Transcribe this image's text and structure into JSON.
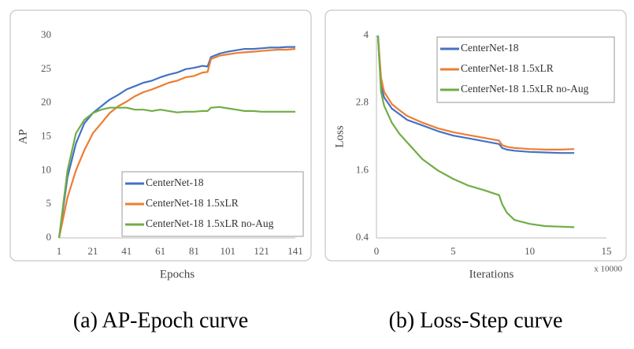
{
  "chart_data": [
    {
      "type": "line",
      "caption": "(a) AP-Epoch curve",
      "xlabel": "Epochs",
      "ylabel": "AP",
      "x": [
        1,
        6,
        11,
        16,
        21,
        26,
        31,
        36,
        41,
        46,
        51,
        56,
        61,
        66,
        71,
        76,
        81,
        86,
        89,
        91,
        96,
        101,
        106,
        111,
        116,
        121,
        126,
        131,
        136,
        141
      ],
      "xlim": [
        1,
        141
      ],
      "xticks": [
        1,
        21,
        41,
        61,
        81,
        101,
        121,
        141
      ],
      "ylim": [
        0,
        30
      ],
      "yticks": [
        0,
        5,
        10,
        15,
        20,
        25,
        30
      ],
      "grid": false,
      "legend": "lower right",
      "series": [
        {
          "name": "CenterNet-18",
          "color": "#4472c4",
          "values": [
            0,
            9,
            14,
            17,
            18.5,
            19.5,
            20.5,
            21.2,
            22,
            22.5,
            23,
            23.3,
            23.8,
            24.2,
            24.5,
            25,
            25.2,
            25.5,
            25.4,
            26.8,
            27.3,
            27.6,
            27.8,
            28,
            28,
            28.1,
            28.2,
            28.2,
            28.3,
            28.3
          ]
        },
        {
          "name": "CenterNet-18 1.5xLR",
          "color": "#ed7d31",
          "values": [
            0,
            6,
            10,
            13,
            15.5,
            17,
            18.5,
            19.5,
            20.2,
            21,
            21.6,
            22,
            22.5,
            23,
            23.3,
            23.8,
            24,
            24.5,
            24.6,
            26.5,
            27,
            27.2,
            27.4,
            27.5,
            27.6,
            27.7,
            27.8,
            27.9,
            27.9,
            28
          ]
        },
        {
          "name": "CenterNet-18 1.5xLR no-Aug",
          "color": "#70ad47",
          "values": [
            0,
            10,
            15.5,
            17.5,
            18.5,
            19,
            19.3,
            19.3,
            19.3,
            19,
            19,
            18.8,
            19,
            18.8,
            18.6,
            18.7,
            18.7,
            18.8,
            18.8,
            19.3,
            19.4,
            19.2,
            19,
            18.8,
            18.8,
            18.7,
            18.7,
            18.7,
            18.7,
            18.7
          ]
        }
      ]
    },
    {
      "type": "line",
      "caption": "(b) Loss-Step curve",
      "xlabel": "Iterations",
      "ylabel": "Loss",
      "xunit": "x 10000",
      "x": [
        0.1,
        0.3,
        0.5,
        1,
        1.5,
        2,
        3,
        4,
        5,
        6,
        7,
        8,
        8.2,
        8.5,
        9,
        10,
        11,
        12,
        12.9
      ],
      "xlim": [
        0,
        15
      ],
      "xticks": [
        0,
        5,
        10,
        15
      ],
      "ylim": [
        0.4,
        4
      ],
      "yticks": [
        0.4,
        1.6,
        2.8,
        4
      ],
      "grid": false,
      "legend": "upper right",
      "series": [
        {
          "name": "CenterNet-18",
          "color": "#4472c4",
          "values": [
            4,
            3.1,
            2.9,
            2.7,
            2.6,
            2.5,
            2.4,
            2.3,
            2.22,
            2.17,
            2.12,
            2.07,
            2.0,
            1.97,
            1.95,
            1.93,
            1.92,
            1.91,
            1.91
          ]
        },
        {
          "name": "CenterNet-18 1.5xLR",
          "color": "#ed7d31",
          "values": [
            4,
            3.25,
            3.0,
            2.78,
            2.67,
            2.57,
            2.45,
            2.35,
            2.28,
            2.23,
            2.18,
            2.13,
            2.05,
            2.02,
            2.0,
            1.98,
            1.97,
            1.97,
            1.98
          ]
        },
        {
          "name": "CenterNet-18 1.5xLR no-Aug",
          "color": "#70ad47",
          "values": [
            4,
            3.0,
            2.75,
            2.45,
            2.25,
            2.1,
            1.8,
            1.6,
            1.45,
            1.33,
            1.25,
            1.16,
            1.0,
            0.85,
            0.72,
            0.65,
            0.61,
            0.6,
            0.59
          ]
        }
      ]
    }
  ]
}
